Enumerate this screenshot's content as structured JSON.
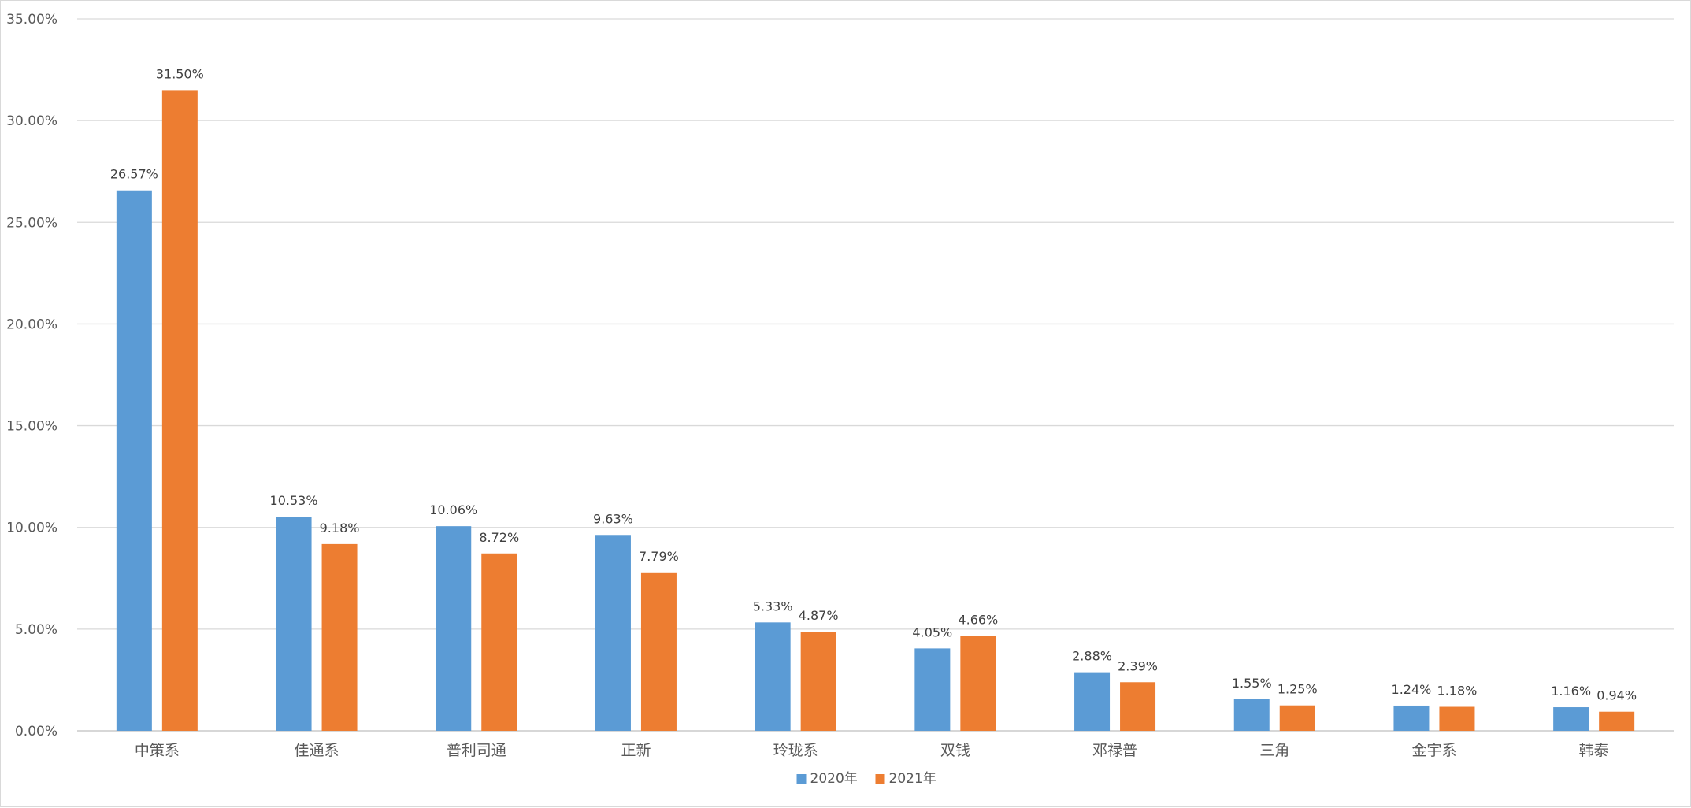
{
  "chart_data": {
    "type": "bar",
    "title": "",
    "xlabel": "",
    "ylabel": "",
    "ylim": [
      0,
      35
    ],
    "y_tick_step": 5,
    "y_tick_format": "percent_2dp",
    "grid": true,
    "legend_position": "bottom",
    "categories": [
      "中策系",
      "佳通系",
      "普利司通",
      "正新",
      "玲珑系",
      "双钱",
      "邓禄普",
      "三角",
      "金宇系",
      "韩泰"
    ],
    "series": [
      {
        "name": "2020年",
        "color": "#5b9bd5",
        "values": [
          26.57,
          10.53,
          10.06,
          9.63,
          5.33,
          4.05,
          2.88,
          1.55,
          1.24,
          1.16
        ],
        "labels": [
          "26.57%",
          "10.53%",
          "10.06%",
          "9.63%",
          "5.33%",
          "4.05%",
          "2.88%",
          "1.55%",
          "1.24%",
          "1.16%"
        ]
      },
      {
        "name": "2021年",
        "color": "#ed7d31",
        "values": [
          31.5,
          9.18,
          8.72,
          7.79,
          4.87,
          4.66,
          2.39,
          1.25,
          1.18,
          0.94
        ],
        "labels": [
          "31.50%",
          "9.18%",
          "8.72%",
          "7.79%",
          "4.87%",
          "4.66%",
          "2.39%",
          "1.25%",
          "1.18%",
          "0.94%"
        ]
      }
    ],
    "y_tick_labels": [
      "0.00%",
      "5.00%",
      "10.00%",
      "15.00%",
      "20.00%",
      "25.00%",
      "30.00%",
      "35.00%"
    ]
  }
}
